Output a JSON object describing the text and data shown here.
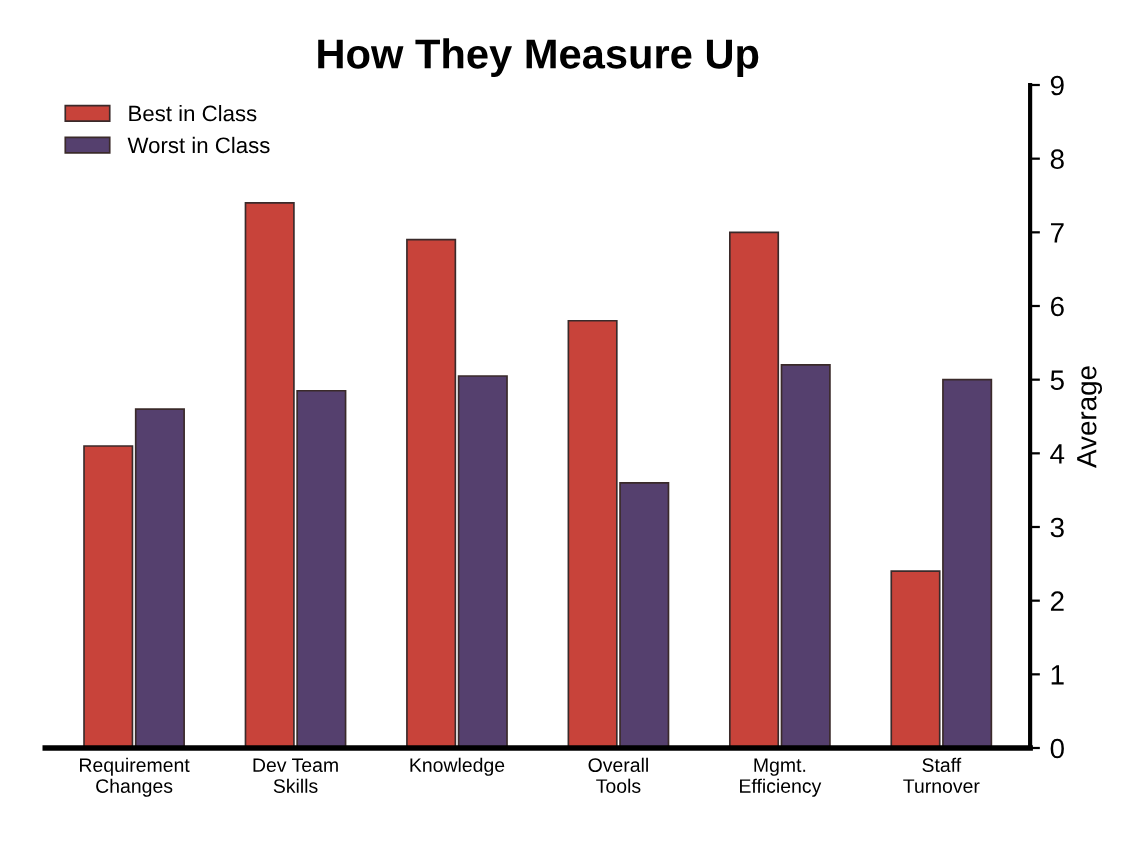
{
  "chart_data": {
    "type": "bar",
    "title": "How They Measure Up",
    "ylabel": "Average",
    "categories": [
      "Requirement\nChanges",
      "Dev Team\nSkills",
      "Knowledge",
      "Overall\nTools",
      "Mgmt.\nEfficiency",
      "Staff\nTurnover"
    ],
    "series": [
      {
        "name": "Best in Class",
        "color": "#c8433a",
        "values": [
          4.1,
          7.4,
          6.9,
          5.8,
          7.0,
          2.4
        ]
      },
      {
        "name": "Worst in Class",
        "color": "#55406e",
        "values": [
          4.6,
          4.85,
          5.05,
          3.6,
          5.2,
          5.0
        ]
      }
    ],
    "ylim": [
      0,
      9
    ],
    "yticks": [
      0,
      1,
      2,
      3,
      4,
      5,
      6,
      7,
      8,
      9
    ],
    "grid": false,
    "legend": "top left"
  }
}
